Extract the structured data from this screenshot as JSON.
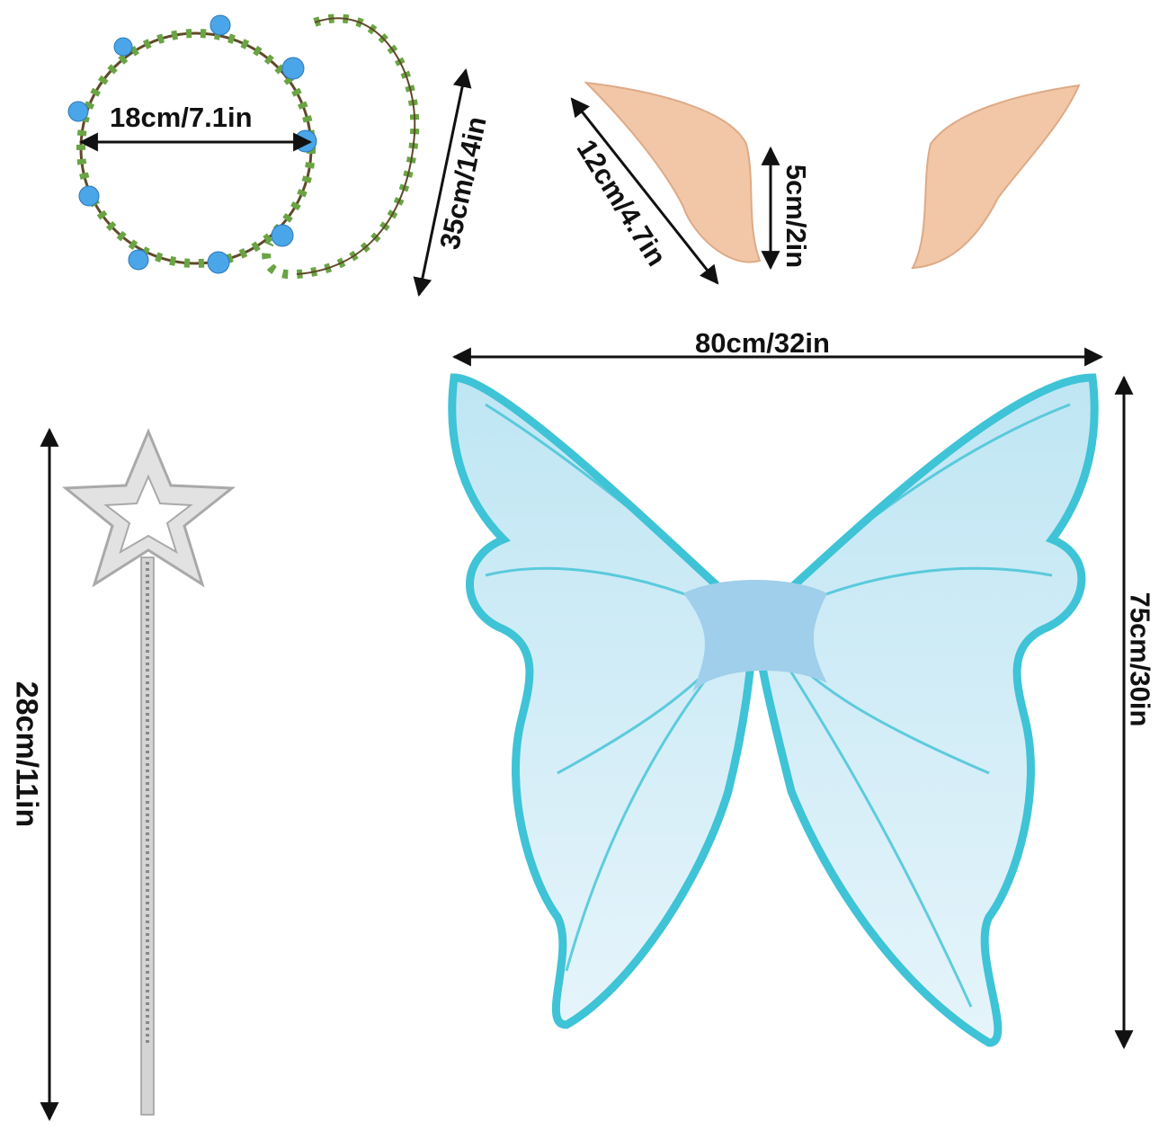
{
  "items": {
    "wreath": {
      "diameter_label": "18cm/7.1in",
      "length_label": "35cm/14in"
    },
    "ears": {
      "length_label": "12cm/4.7in",
      "height_label": "5cm/2in"
    },
    "wings": {
      "width_label": "80cm/32in",
      "height_label": "75cm/30in"
    },
    "wand": {
      "length_label": "28cm/11in"
    }
  },
  "colors": {
    "wing_blue": "#3fc3d6",
    "wing_light": "#cfeaf6",
    "leaf_green": "#5f9a3c",
    "flower_blue": "#4aa6e8",
    "ear_skin": "#f1c7a8",
    "wand_silver": "#c9c9c9"
  }
}
